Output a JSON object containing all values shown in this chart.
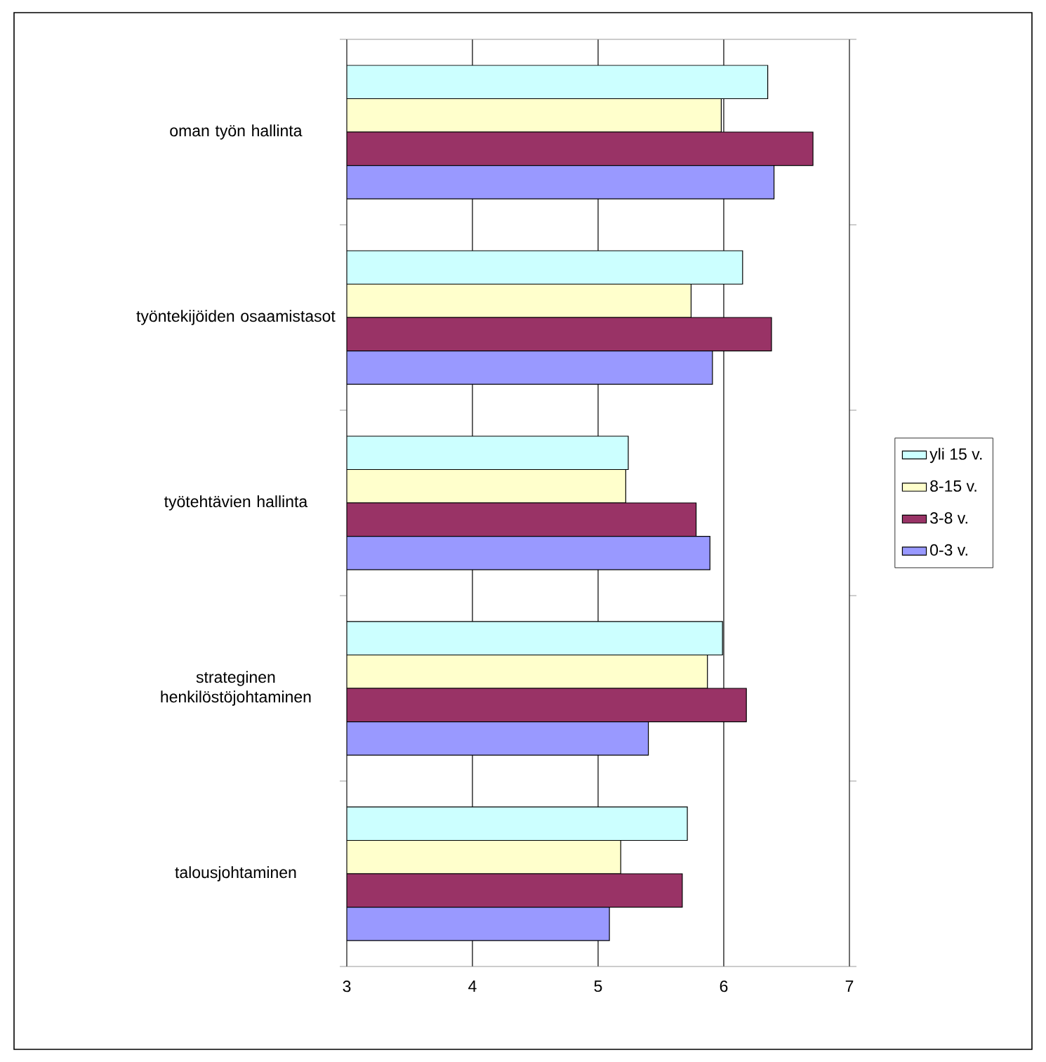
{
  "chart_data": {
    "type": "bar",
    "orientation": "horizontal",
    "categories": [
      "oman työn hallinta",
      "työntekijöiden osaamistasot",
      "työtehtävien hallinta",
      "strateginen henkilöstöjohtaminen",
      "talousjohtaminen"
    ],
    "series": [
      {
        "name": "yli 15 v.",
        "color": "#ccffff",
        "values": [
          6.35,
          6.15,
          5.24,
          5.99,
          5.71
        ]
      },
      {
        "name": "8-15 v.",
        "color": "#ffffcc",
        "values": [
          5.98,
          5.74,
          5.22,
          5.87,
          5.18
        ]
      },
      {
        "name": "3-8 v.",
        "color": "#993366",
        "values": [
          6.71,
          6.38,
          5.78,
          6.18,
          5.67
        ]
      },
      {
        "name": "0-3 v.",
        "color": "#9999ff",
        "values": [
          6.4,
          5.91,
          5.89,
          5.4,
          5.09
        ]
      }
    ],
    "xlim": [
      3,
      7
    ],
    "xticks": [
      3,
      4,
      5,
      6,
      7
    ],
    "grid": "x",
    "legend": "right"
  }
}
